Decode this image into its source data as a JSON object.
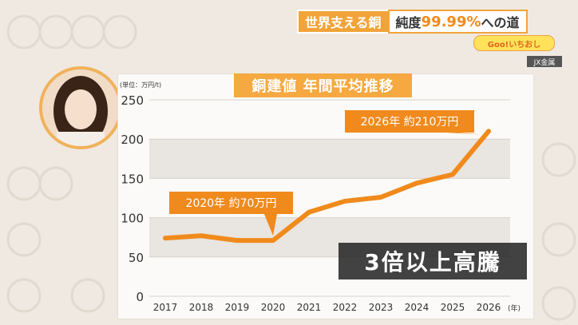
{
  "header": {
    "topic_left": "世界支える銅",
    "topic_right_prefix": "純度",
    "topic_right_highlight": "99.99%",
    "topic_right_suffix": "への道"
  },
  "program_logo": "Goo!いちおし",
  "source_credit": "JX金属",
  "headline_overlay": "3倍以上高騰",
  "colors": {
    "accent": "#f08a1c",
    "title_bg": "#f5a940",
    "overlay_bg": "#2b2b2b"
  },
  "chart_data": {
    "type": "line",
    "title": "銅建値 年間平均推移",
    "unit_label": "(単位：万円/t)",
    "x": [
      "2017",
      "2018",
      "2019",
      "2020",
      "2021",
      "2022",
      "2023",
      "2024",
      "2025",
      "2026"
    ],
    "x_unit": "(年)",
    "series": [
      {
        "values": [
          74,
          77,
          71,
          71,
          107,
          121,
          126,
          144,
          155,
          210
        ]
      }
    ],
    "ylim": [
      0,
      250
    ],
    "yticks": [
      "0",
      "50",
      "100",
      "150",
      "200",
      "250"
    ],
    "grid": true,
    "annotations": [
      {
        "x": "2020",
        "text": "2020年 約70万円"
      },
      {
        "x": "2026",
        "text": "2026年 約210万円"
      }
    ]
  }
}
